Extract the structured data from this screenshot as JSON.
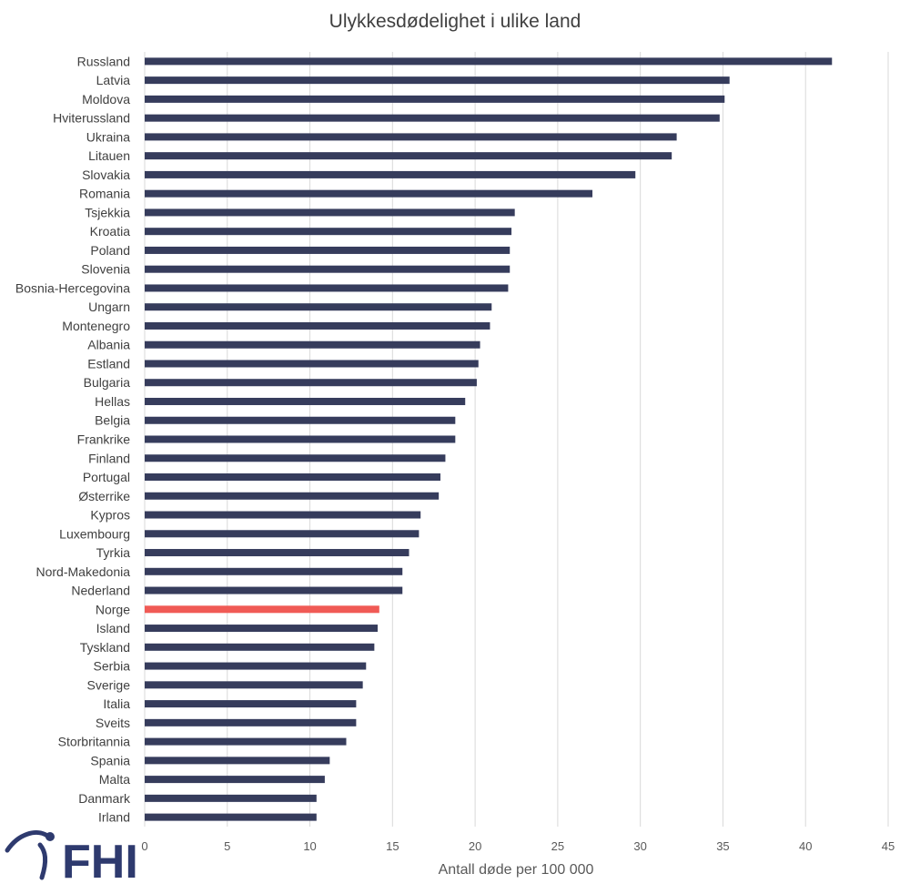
{
  "chart_data": {
    "type": "bar",
    "orientation": "horizontal",
    "title": "Ulykkesdødelighet i ulike land",
    "xlabel": "Antall døde per 100 000",
    "ylabel": "",
    "xlim": [
      0,
      45
    ],
    "xticks": [
      0,
      5,
      10,
      15,
      20,
      25,
      30,
      35,
      40,
      45
    ],
    "grid": true,
    "categories": [
      "Russland",
      "Latvia",
      "Moldova",
      "Hviterussland",
      "Ukraina",
      "Litauen",
      "Slovakia",
      "Romania",
      "Tsjekkia",
      "Kroatia",
      "Poland",
      "Slovenia",
      "Bosnia-Hercegovina",
      "Ungarn",
      "Montenegro",
      "Albania",
      "Estland",
      "Bulgaria",
      "Hellas",
      "Belgia",
      "Frankrike",
      "Finland",
      "Portugal",
      "Østerrike",
      "Kypros",
      "Luxembourg",
      "Tyrkia",
      "Nord-Makedonia",
      "Nederland",
      "Norge",
      "Island",
      "Tyskland",
      "Serbia",
      "Sverige",
      "Italia",
      "Sveits",
      "Storbritannia",
      "Spania",
      "Malta",
      "Danmark",
      "Irland"
    ],
    "values": [
      41.6,
      35.4,
      35.1,
      34.8,
      32.2,
      31.9,
      29.7,
      27.1,
      22.4,
      22.2,
      22.1,
      22.1,
      22.0,
      21.0,
      20.9,
      20.3,
      20.2,
      20.1,
      19.4,
      18.8,
      18.8,
      18.2,
      17.9,
      17.8,
      16.7,
      16.6,
      16.0,
      15.6,
      15.6,
      14.2,
      14.1,
      13.9,
      13.4,
      13.2,
      12.8,
      12.8,
      12.2,
      11.2,
      10.9,
      10.4,
      10.4
    ],
    "highlight": "Norge",
    "colors": {
      "bar": "#363c5c",
      "highlight": "#f05a55",
      "grid": "#d9d9d9"
    }
  },
  "logo": {
    "text": "FHI",
    "color": "#2e3a6e"
  }
}
